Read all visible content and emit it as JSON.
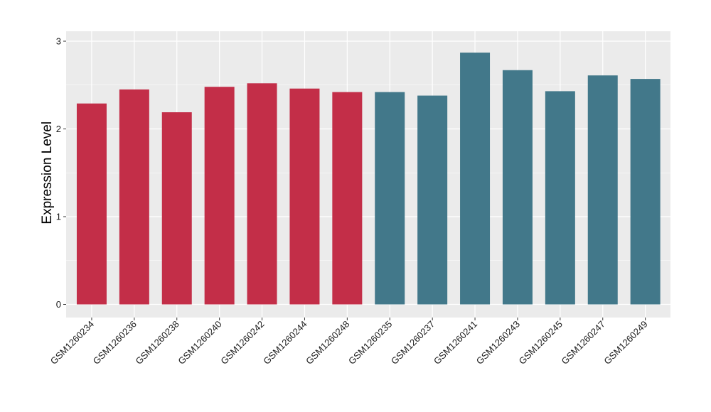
{
  "chart_data": {
    "type": "bar",
    "title": "",
    "xlabel": "",
    "ylabel": "Expression Level",
    "ylim": [
      0,
      3
    ],
    "yticks": [
      0,
      1,
      2,
      3
    ],
    "grid": true,
    "categories": [
      "GSM1260234",
      "GSM1260236",
      "GSM1260238",
      "GSM1260240",
      "GSM1260242",
      "GSM1260244",
      "GSM1260248",
      "GSM1260235",
      "GSM1260237",
      "GSM1260241",
      "GSM1260243",
      "GSM1260245",
      "GSM1260247",
      "GSM1260249"
    ],
    "values": [
      2.29,
      2.45,
      2.19,
      2.48,
      2.52,
      2.46,
      2.42,
      2.42,
      2.38,
      2.87,
      2.67,
      2.43,
      2.61,
      2.57
    ],
    "bar_colors": [
      "#c32e48",
      "#c32e48",
      "#c32e48",
      "#c32e48",
      "#c32e48",
      "#c32e48",
      "#c32e48",
      "#42788a",
      "#42788a",
      "#42788a",
      "#42788a",
      "#42788a",
      "#42788a",
      "#42788a"
    ],
    "panel_background": "#ebebeb",
    "gridline_color": "#ffffff"
  }
}
